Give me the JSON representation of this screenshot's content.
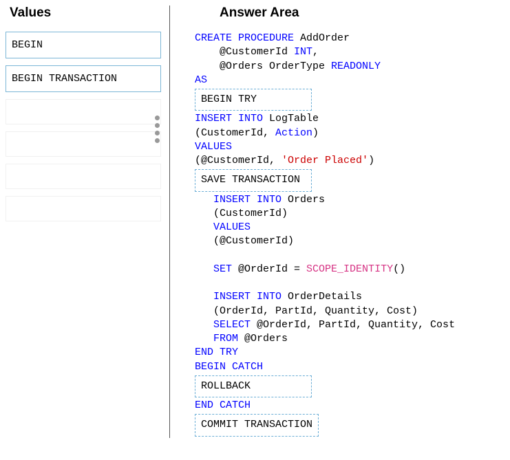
{
  "headers": {
    "values": "Values",
    "answer": "Answer Area"
  },
  "values": {
    "items": [
      {
        "text": "BEGIN",
        "empty": false
      },
      {
        "text": "BEGIN TRANSACTION",
        "empty": false
      },
      {
        "text": "",
        "empty": true
      },
      {
        "text": "",
        "empty": true
      },
      {
        "text": "",
        "empty": true
      },
      {
        "text": "",
        "empty": true
      }
    ]
  },
  "drops": {
    "d1": "BEGIN TRY",
    "d2": "SAVE TRANSACTION",
    "d3": "ROLLBACK",
    "d4": "COMMIT TRANSACTION"
  },
  "code": {
    "l1a": "CREATE",
    "l1b": " PROCEDURE",
    "l1c": " AddOrder",
    "l2a": "    @CustomerId ",
    "l2b": "INT",
    "l2c": ",",
    "l3a": "    @Orders OrderType ",
    "l3b": "READONLY",
    "l4a": "AS",
    "l5a": "INSERT",
    "l5b": " INTO",
    "l5c": " LogTable",
    "l6a": "(CustomerId, ",
    "l6b": "Action",
    "l6c": ")",
    "l7a": "VALUES",
    "l8a": "(@CustomerId, ",
    "l8b": "'Order Placed'",
    "l8c": ")",
    "l9a": "   INSERT",
    "l9b": " INTO",
    "l9c": " Orders",
    "l10a": "   (CustomerId)",
    "l11a": "   VALUES",
    "l12a": "   (@CustomerId)",
    "l13a": "   SET",
    "l13b": " @OrderId = ",
    "l13c": "SCOPE_IDENTITY",
    "l13d": "()",
    "l14a": "   INSERT",
    "l14b": " INTO",
    "l14c": " OrderDetails",
    "l15a": "   (OrderId, PartId, Quantity, Cost)",
    "l16a": "   SELECT",
    "l16b": " @OrderId, PartId, Quantity, Cost",
    "l17a": "   FROM",
    "l17b": " @Orders",
    "l18a": "END",
    "l18b": " TRY",
    "l19a": "BEGIN",
    "l19b": " CATCH",
    "l20a": "END",
    "l20b": " CATCH"
  },
  "colors": {
    "keyword": "#0000ff",
    "string": "#cc0000",
    "function": "#d63384",
    "box_border": "#7bb6d6",
    "drop_border": "#6baed6",
    "divider": "#555555",
    "dot": "#999999",
    "background": "#ffffff"
  }
}
